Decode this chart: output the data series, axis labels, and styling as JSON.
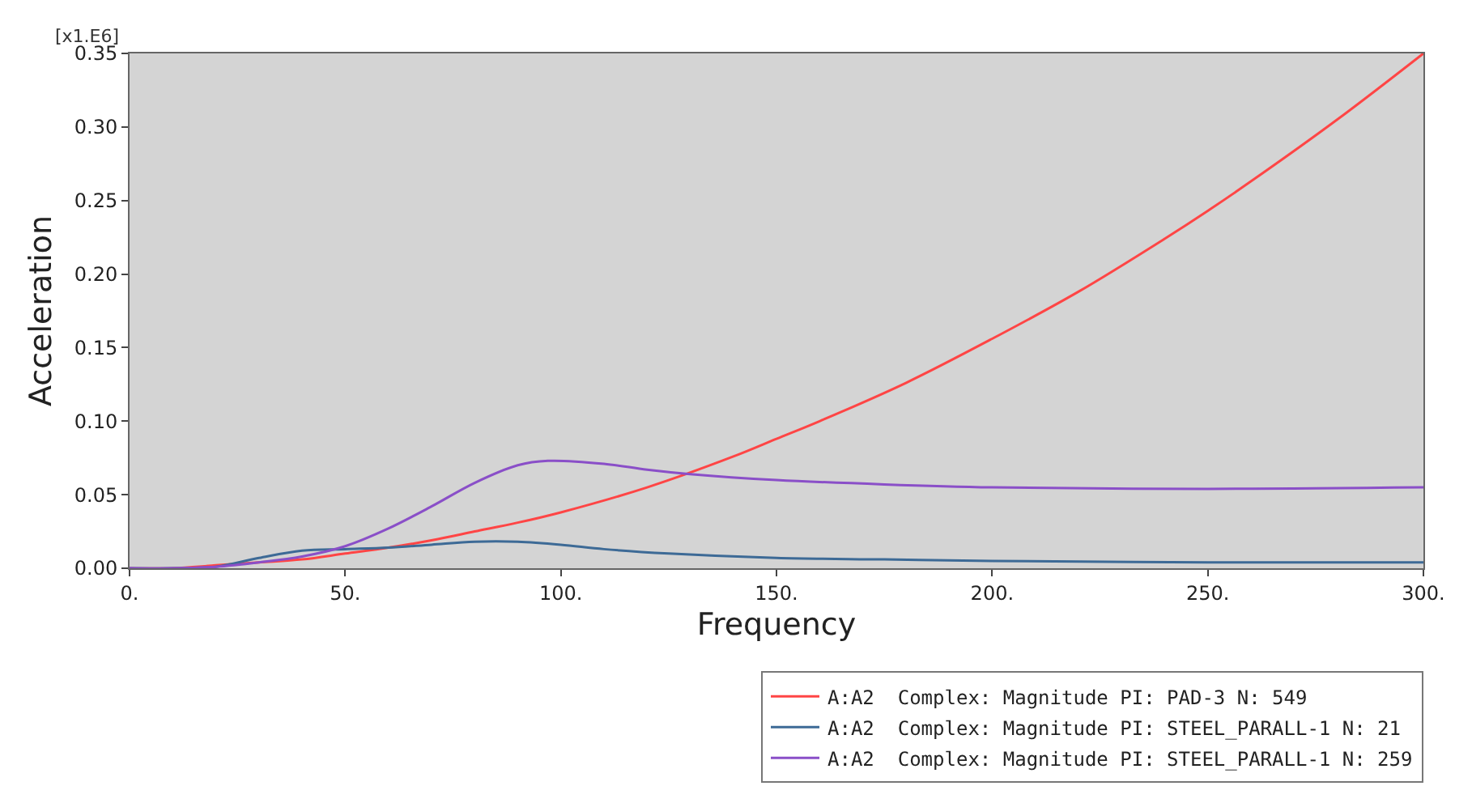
{
  "chart_data": {
    "type": "line",
    "xlabel": "Frequency",
    "ylabel": "Acceleration",
    "annotations": [
      "[x1.E6]"
    ],
    "xlim": [
      0,
      300
    ],
    "xticks": [
      {
        "value": 0,
        "label": "0."
      },
      {
        "value": 50,
        "label": "50."
      },
      {
        "value": 100,
        "label": "100."
      },
      {
        "value": 150,
        "label": "150."
      },
      {
        "value": 200,
        "label": "200."
      },
      {
        "value": 250,
        "label": "250."
      },
      {
        "value": 300,
        "label": "300."
      }
    ],
    "ylim": [
      0,
      0.35
    ],
    "yticks": [
      {
        "value": 0,
        "label": "0.00"
      },
      {
        "value": 0.05,
        "label": "0.05"
      },
      {
        "value": 0.1,
        "label": "0.10"
      },
      {
        "value": 0.15,
        "label": "0.15"
      },
      {
        "value": 0.2,
        "label": "0.20"
      },
      {
        "value": 0.25,
        "label": "0.25"
      },
      {
        "value": 0.3,
        "label": "0.30"
      },
      {
        "value": 0.35,
        "label": "0.35"
      }
    ],
    "grid": false,
    "legend": "bottom right",
    "marker": "none",
    "line_style": "solid",
    "series": [
      {
        "name": "A:A2  Complex: Magnitude PI: PAD-3 N: 549",
        "color": "#ff4545",
        "x": [
          0,
          10,
          20,
          30,
          40,
          50,
          60,
          70,
          80,
          90,
          100,
          120,
          140,
          150,
          160,
          180,
          200,
          220,
          240,
          250,
          260,
          280,
          300
        ],
        "values": [
          0,
          0,
          0.002,
          0.004,
          0.006,
          0.01,
          0.014,
          0.019,
          0.025,
          0.031,
          0.038,
          0.055,
          0.076,
          0.088,
          0.1,
          0.126,
          0.156,
          0.188,
          0.224,
          0.243,
          0.263,
          0.305,
          0.35
        ]
      },
      {
        "name": "A:A2  Complex: Magnitude PI: STEEL_PARALL-1 N: 21",
        "color": "#3d6a96",
        "x": [
          0,
          10,
          20,
          30,
          40,
          50,
          60,
          70,
          80,
          90,
          100,
          110,
          125,
          150,
          175,
          200,
          250,
          300
        ],
        "values": [
          0,
          0,
          0.001,
          0.007,
          0.012,
          0.013,
          0.014,
          0.016,
          0.018,
          0.018,
          0.016,
          0.013,
          0.01,
          0.007,
          0.006,
          0.005,
          0.004,
          0.004
        ]
      },
      {
        "name": "A:A2  Complex: Magnitude PI: STEEL_PARALL-1 N: 259",
        "color": "#8a4fc8",
        "x": [
          0,
          10,
          20,
          30,
          40,
          50,
          60,
          70,
          80,
          90,
          97,
          110,
          120,
          130,
          150,
          175,
          200,
          250,
          300
        ],
        "values": [
          0,
          0,
          0.001,
          0.004,
          0.008,
          0.015,
          0.027,
          0.042,
          0.058,
          0.07,
          0.073,
          0.071,
          0.067,
          0.064,
          0.06,
          0.057,
          0.055,
          0.054,
          0.055
        ]
      }
    ]
  }
}
